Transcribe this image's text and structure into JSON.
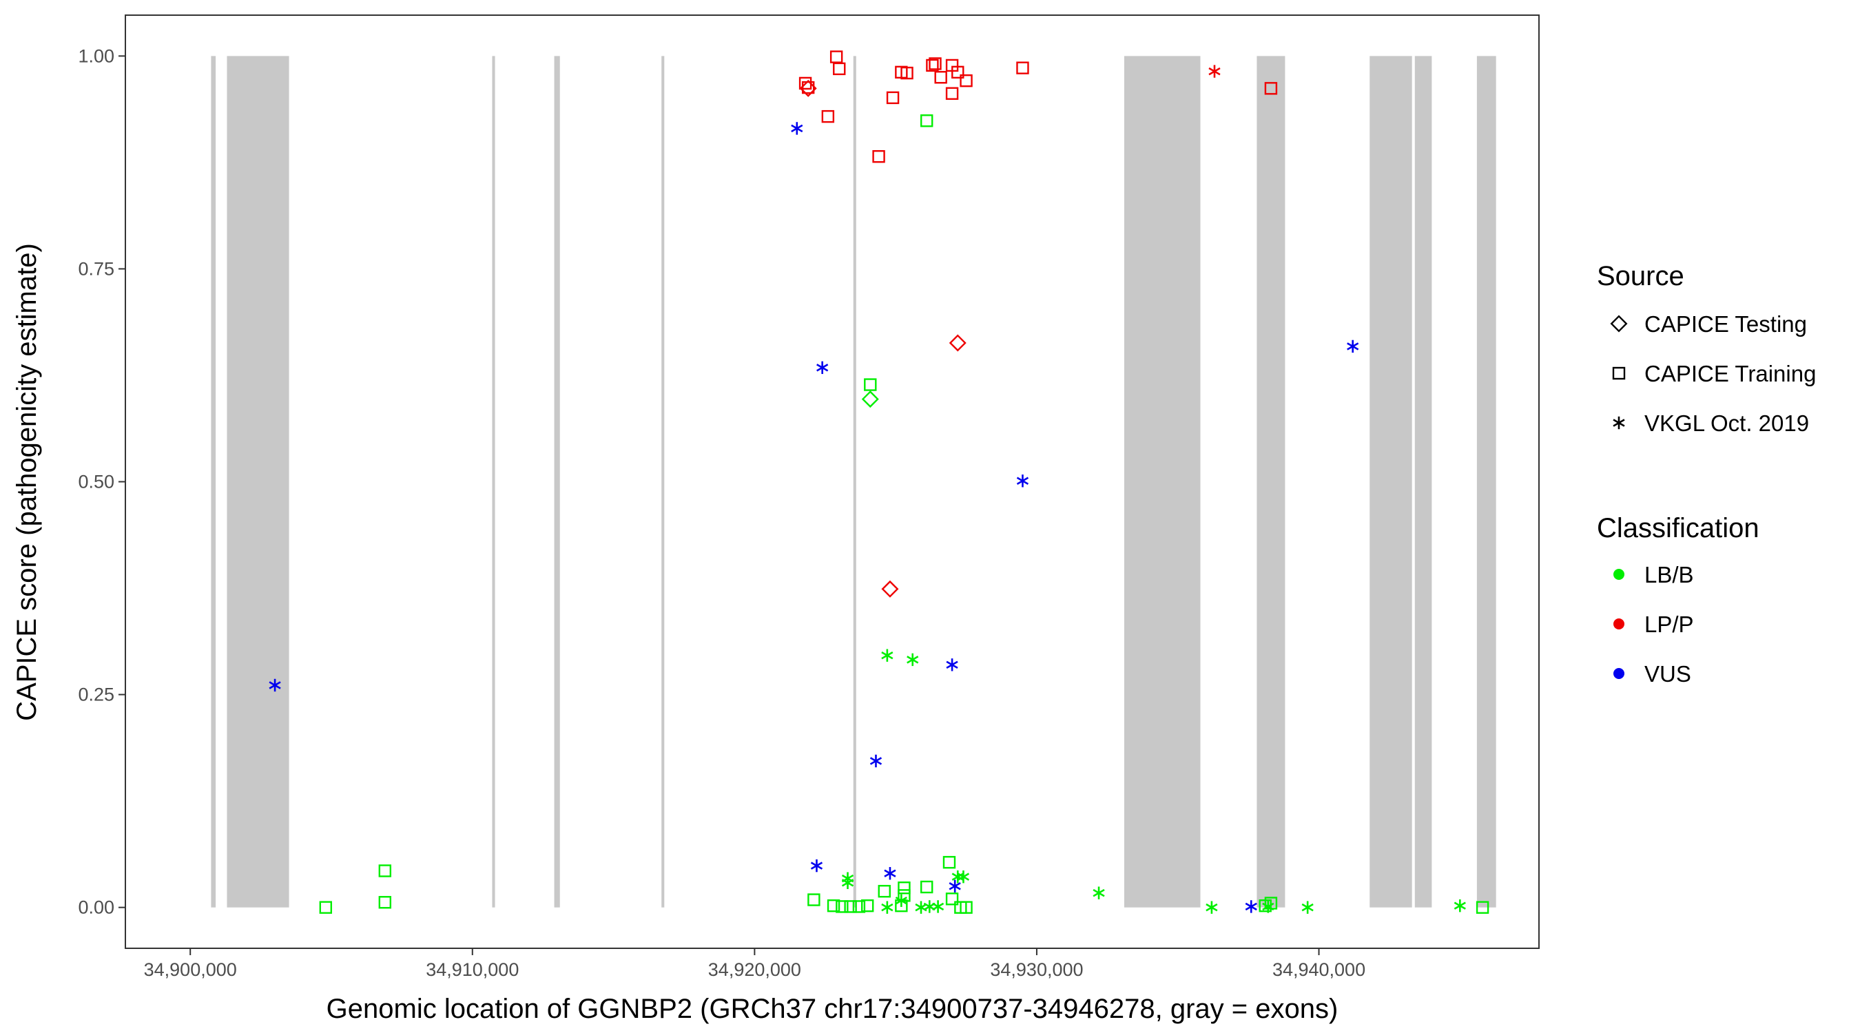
{
  "chart_data": {
    "type": "scatter",
    "title": "",
    "xlabel": "Genomic location of GGNBP2 (GRCh37 chr17:34900737-34946278, gray = exons)",
    "ylabel": "CAPICE score (pathogenicity estimate)",
    "xlim": [
      34897700,
      34947800
    ],
    "ylim": [
      -0.048,
      1.048
    ],
    "x_ticks": [
      34900000,
      34910000,
      34920000,
      34930000,
      34940000
    ],
    "x_tick_labels": [
      "34,900,000",
      "34,910,000",
      "34,920,000",
      "34,930,000",
      "34,940,000"
    ],
    "y_ticks": [
      0,
      0.25,
      0.5,
      0.75,
      1
    ],
    "y_tick_labels": [
      "0.00",
      "0.25",
      "0.50",
      "0.75",
      "1.00"
    ],
    "grid": false,
    "exons": [
      [
        34900737,
        34900900
      ],
      [
        34901300,
        34903500
      ],
      [
        34910700,
        34910800
      ],
      [
        34912900,
        34913100
      ],
      [
        34916700,
        34916800
      ],
      [
        34923500,
        34923600
      ],
      [
        34933100,
        34935800
      ],
      [
        34937800,
        34938800
      ],
      [
        34941800,
        34943300
      ],
      [
        34943400,
        34944000
      ],
      [
        34945600,
        34946278
      ]
    ],
    "exon_color": "#c8c8c8",
    "legend_position": "right",
    "legend": {
      "source_title": "Source",
      "source_items": [
        {
          "label": "CAPICE Testing",
          "shape": "diamond"
        },
        {
          "label": "CAPICE Training",
          "shape": "square"
        },
        {
          "label": "VKGL Oct. 2019",
          "shape": "asterisk"
        }
      ],
      "class_title": "Classification",
      "class_items": [
        {
          "label": "LB/B",
          "color": "#00ee00"
        },
        {
          "label": "LP/P",
          "color": "#ee0000"
        },
        {
          "label": "VUS",
          "color": "#0000ee"
        }
      ]
    },
    "points": [
      {
        "x": 34904800,
        "y": 0.0,
        "source": "square",
        "class": "LB/B"
      },
      {
        "x": 34906900,
        "y": 0.006,
        "source": "square",
        "class": "LB/B"
      },
      {
        "x": 34906900,
        "y": 0.043,
        "source": "square",
        "class": "LB/B"
      },
      {
        "x": 34922100,
        "y": 0.009,
        "source": "square",
        "class": "LB/B"
      },
      {
        "x": 34922800,
        "y": 0.002,
        "source": "square",
        "class": "LB/B"
      },
      {
        "x": 34923100,
        "y": 0.001,
        "source": "square",
        "class": "LB/B"
      },
      {
        "x": 34923400,
        "y": 0.001,
        "source": "square",
        "class": "LB/B"
      },
      {
        "x": 34923700,
        "y": 0.001,
        "source": "square",
        "class": "LB/B"
      },
      {
        "x": 34924000,
        "y": 0.002,
        "source": "square",
        "class": "LB/B"
      },
      {
        "x": 34924600,
        "y": 0.019,
        "source": "square",
        "class": "LB/B"
      },
      {
        "x": 34925200,
        "y": 0.002,
        "source": "square",
        "class": "LB/B"
      },
      {
        "x": 34925300,
        "y": 0.014,
        "source": "square",
        "class": "LB/B"
      },
      {
        "x": 34925300,
        "y": 0.023,
        "source": "square",
        "class": "LB/B"
      },
      {
        "x": 34926100,
        "y": 0.024,
        "source": "square",
        "class": "LB/B"
      },
      {
        "x": 34926900,
        "y": 0.053,
        "source": "square",
        "class": "LB/B"
      },
      {
        "x": 34927000,
        "y": 0.01,
        "source": "square",
        "class": "LB/B"
      },
      {
        "x": 34927300,
        "y": 0.0,
        "source": "square",
        "class": "LB/B"
      },
      {
        "x": 34927500,
        "y": 0.0,
        "source": "square",
        "class": "LB/B"
      },
      {
        "x": 34938100,
        "y": 0.002,
        "source": "square",
        "class": "LB/B"
      },
      {
        "x": 34938300,
        "y": 0.005,
        "source": "square",
        "class": "LB/B"
      },
      {
        "x": 34945800,
        "y": 0.0,
        "source": "square",
        "class": "LB/B"
      },
      {
        "x": 34924100,
        "y": 0.614,
        "source": "square",
        "class": "LB/B"
      },
      {
        "x": 34926100,
        "y": 0.924,
        "source": "square",
        "class": "LB/B"
      },
      {
        "x": 34924100,
        "y": 0.597,
        "source": "diamond",
        "class": "LB/B"
      },
      {
        "x": 34923300,
        "y": 0.034,
        "source": "asterisk",
        "class": "LB/B"
      },
      {
        "x": 34923300,
        "y": 0.029,
        "source": "asterisk",
        "class": "LB/B"
      },
      {
        "x": 34924700,
        "y": 0.0,
        "source": "asterisk",
        "class": "LB/B"
      },
      {
        "x": 34925200,
        "y": 0.008,
        "source": "asterisk",
        "class": "LB/B"
      },
      {
        "x": 34925900,
        "y": 0.0,
        "source": "asterisk",
        "class": "LB/B"
      },
      {
        "x": 34926200,
        "y": 0.001,
        "source": "asterisk",
        "class": "LB/B"
      },
      {
        "x": 34926500,
        "y": 0.001,
        "source": "asterisk",
        "class": "LB/B"
      },
      {
        "x": 34927200,
        "y": 0.036,
        "source": "asterisk",
        "class": "LB/B"
      },
      {
        "x": 34927400,
        "y": 0.036,
        "source": "asterisk",
        "class": "LB/B"
      },
      {
        "x": 34932200,
        "y": 0.017,
        "source": "asterisk",
        "class": "LB/B"
      },
      {
        "x": 34936200,
        "y": 0.0,
        "source": "asterisk",
        "class": "LB/B"
      },
      {
        "x": 34938200,
        "y": 0.001,
        "source": "asterisk",
        "class": "LB/B"
      },
      {
        "x": 34939600,
        "y": 0.0,
        "source": "asterisk",
        "class": "LB/B"
      },
      {
        "x": 34945000,
        "y": 0.002,
        "source": "asterisk",
        "class": "LB/B"
      },
      {
        "x": 34924700,
        "y": 0.296,
        "source": "asterisk",
        "class": "LB/B"
      },
      {
        "x": 34925600,
        "y": 0.291,
        "source": "asterisk",
        "class": "LB/B"
      },
      {
        "x": 34921800,
        "y": 0.968,
        "source": "square",
        "class": "LP/P"
      },
      {
        "x": 34921900,
        "y": 0.963,
        "source": "square",
        "class": "LP/P"
      },
      {
        "x": 34922600,
        "y": 0.929,
        "source": "square",
        "class": "LP/P"
      },
      {
        "x": 34922900,
        "y": 0.999,
        "source": "square",
        "class": "LP/P"
      },
      {
        "x": 34923000,
        "y": 0.985,
        "source": "square",
        "class": "LP/P"
      },
      {
        "x": 34924400,
        "y": 0.882,
        "source": "square",
        "class": "LP/P"
      },
      {
        "x": 34924900,
        "y": 0.951,
        "source": "square",
        "class": "LP/P"
      },
      {
        "x": 34925200,
        "y": 0.981,
        "source": "square",
        "class": "LP/P"
      },
      {
        "x": 34925400,
        "y": 0.98,
        "source": "square",
        "class": "LP/P"
      },
      {
        "x": 34926300,
        "y": 0.989,
        "source": "square",
        "class": "LP/P"
      },
      {
        "x": 34926400,
        "y": 0.991,
        "source": "square",
        "class": "LP/P"
      },
      {
        "x": 34926600,
        "y": 0.975,
        "source": "square",
        "class": "LP/P"
      },
      {
        "x": 34927000,
        "y": 0.956,
        "source": "square",
        "class": "LP/P"
      },
      {
        "x": 34927000,
        "y": 0.989,
        "source": "square",
        "class": "LP/P"
      },
      {
        "x": 34927200,
        "y": 0.981,
        "source": "square",
        "class": "LP/P"
      },
      {
        "x": 34927500,
        "y": 0.971,
        "source": "square",
        "class": "LP/P"
      },
      {
        "x": 34929500,
        "y": 0.986,
        "source": "square",
        "class": "LP/P"
      },
      {
        "x": 34938300,
        "y": 0.962,
        "source": "square",
        "class": "LP/P"
      },
      {
        "x": 34921900,
        "y": 0.962,
        "source": "diamond",
        "class": "LP/P"
      },
      {
        "x": 34927200,
        "y": 0.663,
        "source": "diamond",
        "class": "LP/P"
      },
      {
        "x": 34924800,
        "y": 0.374,
        "source": "diamond",
        "class": "LP/P"
      },
      {
        "x": 34936300,
        "y": 0.982,
        "source": "asterisk",
        "class": "LP/P"
      },
      {
        "x": 34903000,
        "y": 0.261,
        "source": "asterisk",
        "class": "VUS"
      },
      {
        "x": 34921500,
        "y": 0.915,
        "source": "asterisk",
        "class": "VUS"
      },
      {
        "x": 34922400,
        "y": 0.634,
        "source": "asterisk",
        "class": "VUS"
      },
      {
        "x": 34922200,
        "y": 0.049,
        "source": "asterisk",
        "class": "VUS"
      },
      {
        "x": 34924300,
        "y": 0.172,
        "source": "asterisk",
        "class": "VUS"
      },
      {
        "x": 34924800,
        "y": 0.04,
        "source": "asterisk",
        "class": "VUS"
      },
      {
        "x": 34927000,
        "y": 0.285,
        "source": "asterisk",
        "class": "VUS"
      },
      {
        "x": 34927100,
        "y": 0.025,
        "source": "asterisk",
        "class": "VUS"
      },
      {
        "x": 34929500,
        "y": 0.501,
        "source": "asterisk",
        "class": "VUS"
      },
      {
        "x": 34937600,
        "y": 0.001,
        "source": "asterisk",
        "class": "VUS"
      },
      {
        "x": 34941200,
        "y": 0.659,
        "source": "asterisk",
        "class": "VUS"
      }
    ]
  }
}
